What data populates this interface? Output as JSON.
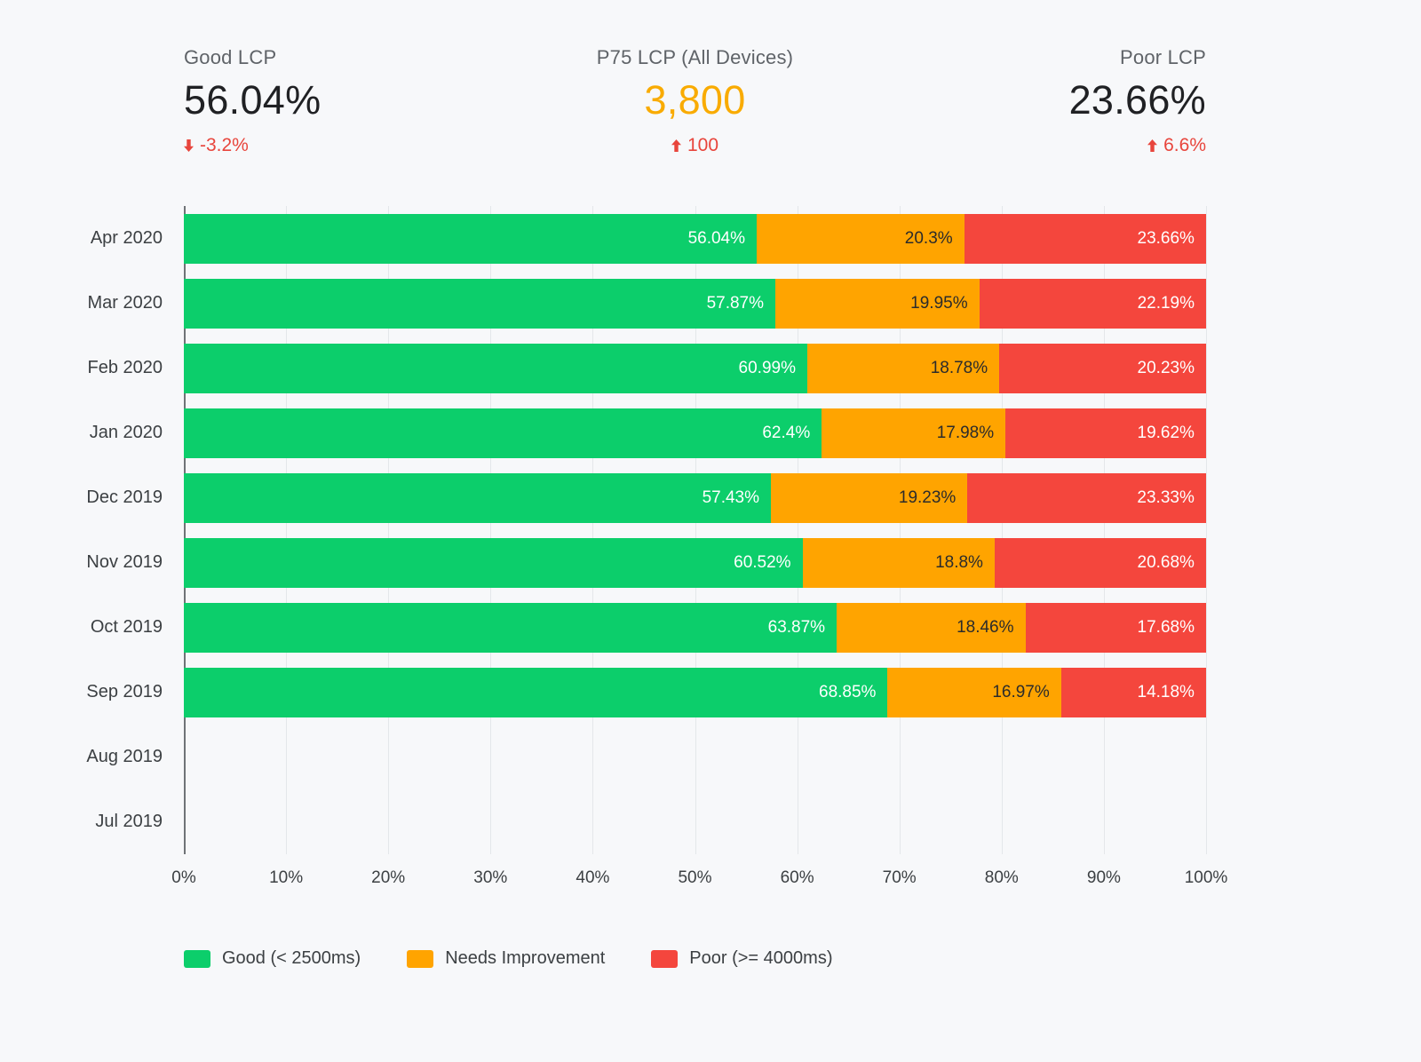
{
  "kpis": [
    {
      "label": "Good LCP",
      "value": "56.04%",
      "delta": "-3.2%",
      "direction": "down",
      "align": "left",
      "value_color": "#202124",
      "delta_color": "#e8453c"
    },
    {
      "label": "P75 LCP (All Devices)",
      "value": "3,800",
      "delta": "100",
      "direction": "up",
      "align": "center",
      "value_color": "#f9ab00",
      "delta_color": "#e8453c"
    },
    {
      "label": "Poor LCP",
      "value": "23.66%",
      "delta": "6.6%",
      "direction": "up",
      "align": "right",
      "value_color": "#202124",
      "delta_color": "#e8453c"
    }
  ],
  "chart_data": {
    "type": "bar",
    "orientation": "horizontal",
    "stacked": true,
    "title": "",
    "categories": [
      "Apr 2020",
      "Mar 2020",
      "Feb 2020",
      "Jan 2020",
      "Dec 2019",
      "Nov 2019",
      "Oct 2019",
      "Sep 2019",
      "Aug 2019",
      "Jul 2019"
    ],
    "series": [
      {
        "name": "Good (< 2500ms)",
        "color": "#0cce6b",
        "label_color": "#ffffff",
        "values": [
          56.04,
          57.87,
          60.99,
          62.4,
          57.43,
          60.52,
          63.87,
          68.85,
          null,
          null
        ]
      },
      {
        "name": "Needs Improvement",
        "color": "#ffa400",
        "label_color": "#2b2b2b",
        "values": [
          20.3,
          19.95,
          18.78,
          17.98,
          19.23,
          18.8,
          18.46,
          16.97,
          null,
          null
        ]
      },
      {
        "name": "Poor (>= 4000ms)",
        "color": "#f4463d",
        "label_color": "#ffffff",
        "values": [
          23.66,
          22.19,
          20.23,
          19.62,
          23.33,
          20.68,
          17.68,
          14.18,
          null,
          null
        ]
      }
    ],
    "xlim": [
      0,
      100
    ],
    "x_ticks": [
      "0%",
      "10%",
      "20%",
      "30%",
      "40%",
      "50%",
      "60%",
      "70%",
      "80%",
      "90%",
      "100%"
    ],
    "grid": true,
    "legend_position": "bottom"
  }
}
